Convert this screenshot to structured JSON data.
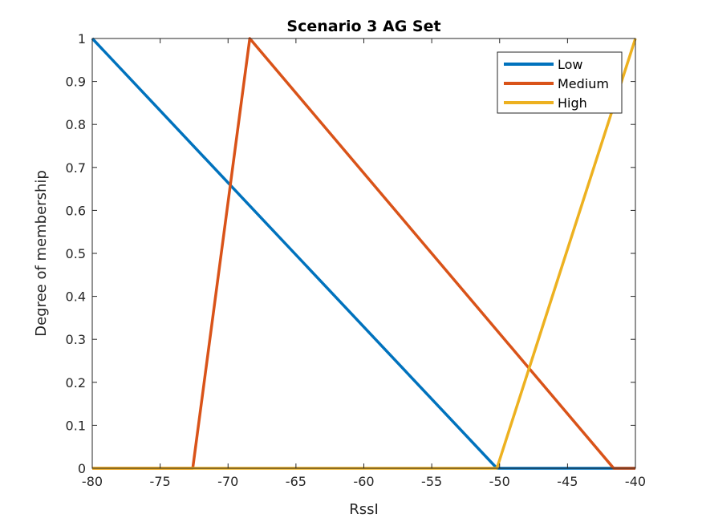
{
  "chart_data": {
    "type": "line",
    "title": "Scenario 3 AG Set",
    "xlabel": "RssI",
    "ylabel": "Degree of membership",
    "xlim": [
      -80,
      -40
    ],
    "ylim": [
      0,
      1
    ],
    "xticks": [
      -80,
      -75,
      -70,
      -65,
      -60,
      -55,
      -50,
      -45,
      -40
    ],
    "yticks": [
      0,
      0.1,
      0.2,
      0.3,
      0.4,
      0.5,
      0.6,
      0.7,
      0.8,
      0.9,
      1
    ],
    "xtick_labels": [
      "-80",
      "-75",
      "-70",
      "-65",
      "-60",
      "-55",
      "-50",
      "-45",
      "-40"
    ],
    "ytick_labels": [
      "0",
      "0.1",
      "0.2",
      "0.3",
      "0.4",
      "0.5",
      "0.6",
      "0.7",
      "0.8",
      "0.9",
      "1"
    ],
    "grid": false,
    "legend_position": "top-right",
    "series": [
      {
        "name": "Low",
        "color": "#0072BD",
        "x": [
          -80,
          -50.2,
          -40
        ],
        "y": [
          1,
          0,
          0
        ]
      },
      {
        "name": "Medium",
        "color": "#D95319",
        "x": [
          -80,
          -72.6,
          -68.4,
          -41.6,
          -40
        ],
        "y": [
          0,
          0,
          1,
          0,
          0
        ]
      },
      {
        "name": "High",
        "color": "#EDB120",
        "x": [
          -80,
          -50.2,
          -40
        ],
        "y": [
          0,
          0,
          1
        ]
      }
    ]
  }
}
